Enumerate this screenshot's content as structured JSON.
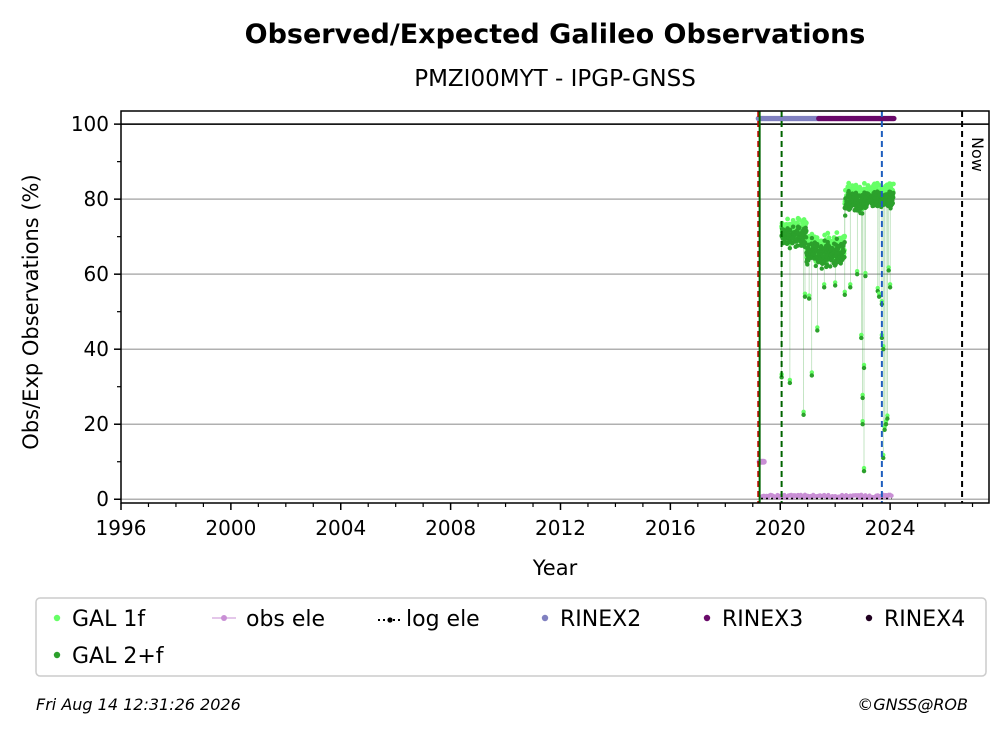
{
  "chart_data": {
    "type": "scatter",
    "title": "Observed/Expected Galileo Observations",
    "subtitle": "PMZI00MYT - IPGP-GNSS",
    "xlabel": "Year",
    "ylabel": "Obs/Exp Observations (%)",
    "xlim": [
      1996,
      2027.6
    ],
    "ylim": [
      -1,
      103.5
    ],
    "xticks": [
      1996,
      2000,
      2004,
      2008,
      2012,
      2016,
      2020,
      2024
    ],
    "yticks": [
      0,
      20,
      40,
      60,
      80,
      100
    ],
    "grid": "horizontal",
    "legend_position": "bottom",
    "colors": {
      "gal_1f": "#66ff66",
      "gal_2f": "#2ca02c",
      "obs_ele": "#c98fd5",
      "log_ele": "#000000",
      "rinex2": "#8080c0",
      "rinex3": "#6a0a6a",
      "rinex4": "#200020",
      "equipment_change": "#006400",
      "site_start": "#cc0000",
      "antenna_change": "#1f5fbf",
      "now_line": "#000000"
    },
    "legend": [
      {
        "key": "gal_1f",
        "label": "GAL 1f",
        "marker": "dot"
      },
      {
        "key": "obs_ele",
        "label": "obs ele",
        "marker": "line-dot"
      },
      {
        "key": "log_ele",
        "label": "log ele",
        "marker": "dotted-line-dot"
      },
      {
        "key": "rinex2",
        "label": "RINEX2",
        "marker": "dot"
      },
      {
        "key": "rinex3",
        "label": "RINEX3",
        "marker": "dot"
      },
      {
        "key": "rinex4",
        "label": "RINEX4",
        "marker": "dot"
      },
      {
        "key": "gal_2f",
        "label": "GAL 2+f",
        "marker": "dot"
      }
    ],
    "reference_lines": [
      {
        "x": 2019.2,
        "color_key": "site_start",
        "style": "dashed"
      },
      {
        "x": 2019.25,
        "color_key": "equipment_change",
        "style": "solid"
      },
      {
        "x": 2020.05,
        "color_key": "equipment_change",
        "style": "dashed"
      },
      {
        "x": 2023.7,
        "color_key": "antenna_change",
        "style": "dashed"
      },
      {
        "x": 2026.62,
        "color_key": "now_line",
        "style": "dashed",
        "label": "Now"
      }
    ],
    "hline": 100,
    "rinex_bars": {
      "y": 101.5,
      "rinex2": {
        "x_start": 2019.2,
        "x_end": 2021.4
      },
      "rinex3": {
        "x_start": 2021.4,
        "x_end": 2024.15
      }
    },
    "obs_ele_series": {
      "x_start": 2019.2,
      "x_end": 2024.05,
      "early": [
        [
          2019.25,
          10
        ],
        [
          2019.3,
          10
        ],
        [
          2019.35,
          10
        ],
        [
          2019.4,
          10
        ]
      ],
      "level": 0.8
    },
    "log_ele_series": {
      "x_start": 2019.3,
      "x_end": 2024.05,
      "level": 0.2
    },
    "gal_segments": [
      {
        "x_start": 2020.05,
        "x_end": 2020.95,
        "center": 70,
        "spread": 4
      },
      {
        "x_start": 2020.95,
        "x_end": 2022.35,
        "center": 65.5,
        "spread": 4.5
      },
      {
        "x_start": 2022.35,
        "x_end": 2023.1,
        "center": 79,
        "spread": 4
      },
      {
        "x_start": 2023.1,
        "x_end": 2024.12,
        "center": 80,
        "spread": 3
      }
    ],
    "gal_outliers": [
      [
        2020.05,
        32.5
      ],
      [
        2020.35,
        31
      ],
      [
        2020.85,
        22.5
      ],
      [
        2020.9,
        54
      ],
      [
        2021.05,
        53.5
      ],
      [
        2021.15,
        33
      ],
      [
        2021.35,
        45
      ],
      [
        2021.6,
        56.5
      ],
      [
        2022.0,
        57
      ],
      [
        2022.35,
        54.5
      ],
      [
        2022.55,
        56.5
      ],
      [
        2022.8,
        60
      ],
      [
        2022.95,
        43
      ],
      [
        2023.0,
        27
      ],
      [
        2023.0,
        20
      ],
      [
        2023.05,
        7.5
      ],
      [
        2023.05,
        35
      ],
      [
        2023.1,
        59.5
      ],
      [
        2023.55,
        55.5
      ],
      [
        2023.6,
        54
      ],
      [
        2023.7,
        52
      ],
      [
        2023.7,
        43
      ],
      [
        2023.75,
        40
      ],
      [
        2023.75,
        11
      ],
      [
        2023.8,
        18.5
      ],
      [
        2023.85,
        20
      ],
      [
        2023.9,
        21.5
      ],
      [
        2023.95,
        61
      ],
      [
        2024.0,
        56.5
      ]
    ]
  },
  "footer": {
    "timestamp": "Fri Aug 14 12:31:26 2026",
    "credit": "©GNSS@ROB"
  }
}
